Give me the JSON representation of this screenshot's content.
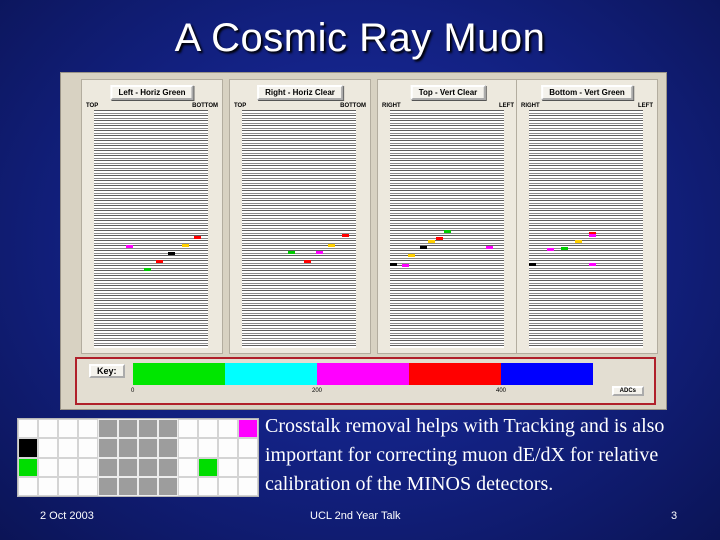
{
  "slide": {
    "title": "A Cosmic Ray Muon",
    "caption": "Crosstalk removal helps with Tracking and is also important for correcting muon dE/dX for relative calibration of the MINOS detectors.",
    "footer_left": "2 Oct 2003",
    "footer_center": "UCL 2nd Year Talk",
    "footer_right": "3"
  },
  "panels": [
    {
      "title": "Left - Horiz Green",
      "end_left": "TOP",
      "end_right": "BOTTOM"
    },
    {
      "title": "Right - Horiz Clear",
      "end_left": "TOP",
      "end_right": "BOTTOM"
    },
    {
      "title": "Top - Vert Clear",
      "end_left": "RIGHT",
      "end_right": "LEFT"
    },
    {
      "title": "Bottom - Vert Green",
      "end_left": "RIGHT",
      "end_right": "LEFT"
    }
  ],
  "key": {
    "label": "Key:",
    "ticks": [
      "0",
      "200",
      "400"
    ],
    "units": "ADCs",
    "colors": [
      "#00e600",
      "#00ffff",
      "#ff00ff",
      "#ff0000",
      "#0000ff"
    ]
  },
  "pixel_grid": {
    "rows": [
      [
        "w",
        "w",
        "w",
        "w",
        "g",
        "g",
        "g",
        "g",
        "w",
        "w",
        "w",
        "m"
      ],
      [
        "k",
        "w",
        "w",
        "w",
        "g",
        "g",
        "g",
        "g",
        "w",
        "w",
        "w",
        "w"
      ],
      [
        "n",
        "w",
        "w",
        "w",
        "g",
        "g",
        "g",
        "g",
        "w",
        "n",
        "w",
        "w"
      ],
      [
        "w",
        "w",
        "w",
        "w",
        "g",
        "g",
        "g",
        "g",
        "w",
        "w",
        "w",
        "w"
      ]
    ]
  }
}
